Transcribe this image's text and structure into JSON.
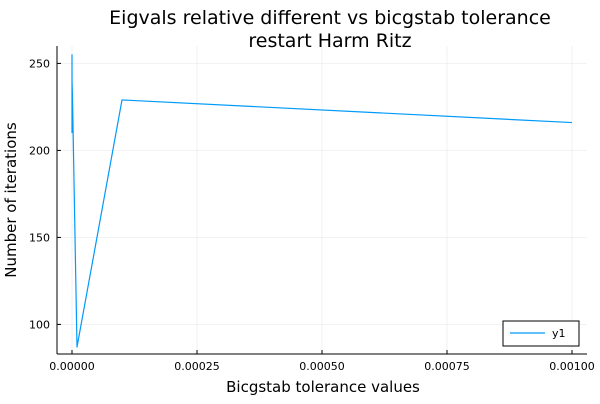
{
  "chart_data": {
    "type": "line",
    "title": [
      "Eigvals relative different vs bicgstab tolerance",
      "restart Harm Ritz"
    ],
    "xlabel": "Bicgstab tolerance values",
    "ylabel": "Number of iterations",
    "xlim": [
      -3e-05,
      0.00103
    ],
    "ylim": [
      83,
      260
    ],
    "x_ticks": [
      0,
      0.00025,
      0.0005,
      0.00075,
      0.001
    ],
    "x_tick_labels": [
      "0.00000",
      "0.00025",
      "0.00050",
      "0.00075",
      "0.00100"
    ],
    "y_ticks": [
      100,
      150,
      200,
      250
    ],
    "y_tick_labels": [
      "100",
      "150",
      "200",
      "250"
    ],
    "grid": true,
    "legend_position": "bottom-right",
    "series": [
      {
        "name": "y1",
        "color": "#009AFA",
        "x": [
          1e-10,
          1e-09,
          1e-08,
          1e-07,
          1e-06,
          1e-05,
          0.0001,
          0.001
        ],
        "y": [
          210,
          255,
          248,
          240,
          230,
          87,
          229,
          216
        ]
      }
    ]
  }
}
